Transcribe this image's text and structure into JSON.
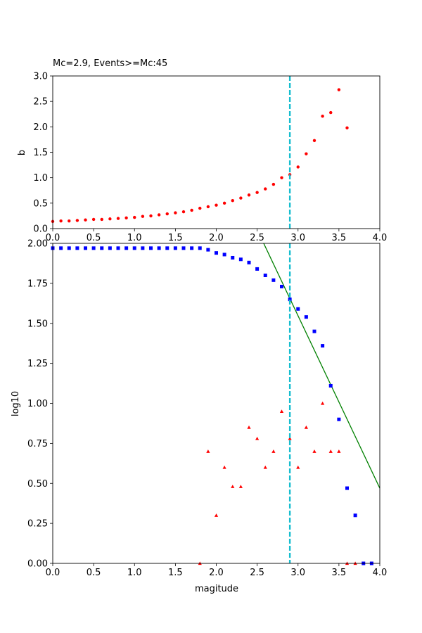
{
  "chart_data": [
    {
      "type": "scatter",
      "title": "Mc=2.9, Events>=Mc:45",
      "xlabel": "",
      "ylabel": "b",
      "xlim": [
        0,
        4
      ],
      "ylim": [
        0,
        3
      ],
      "xticks": [
        "0.0",
        "0.5",
        "1.0",
        "1.5",
        "2.0",
        "2.5",
        "3.0",
        "3.5",
        "4.0"
      ],
      "yticks": [
        "0.0",
        "0.5",
        "1.0",
        "1.5",
        "2.0",
        "2.5",
        "3.0"
      ],
      "vline": 2.9,
      "series": [
        {
          "marker": "circle",
          "color": "#ff0000",
          "x": [
            0.0,
            0.1,
            0.2,
            0.3,
            0.4,
            0.5,
            0.6,
            0.7,
            0.8,
            0.9,
            1.0,
            1.1,
            1.2,
            1.3,
            1.4,
            1.5,
            1.6,
            1.7,
            1.8,
            1.9,
            2.0,
            2.1,
            2.2,
            2.3,
            2.4,
            2.5,
            2.6,
            2.7,
            2.8,
            2.9,
            3.0,
            3.1,
            3.2,
            3.3,
            3.4,
            3.5,
            3.6
          ],
          "y": [
            0.14,
            0.15,
            0.15,
            0.16,
            0.17,
            0.18,
            0.18,
            0.19,
            0.2,
            0.21,
            0.22,
            0.24,
            0.25,
            0.27,
            0.29,
            0.31,
            0.33,
            0.36,
            0.4,
            0.43,
            0.46,
            0.5,
            0.55,
            0.6,
            0.66,
            0.71,
            0.78,
            0.87,
            1.0,
            1.06,
            1.21,
            1.47,
            1.73,
            2.21,
            2.28,
            2.73,
            1.98
          ]
        }
      ]
    },
    {
      "type": "scatter",
      "title": "",
      "xlabel": "magitude",
      "ylabel": "log10",
      "xlim": [
        0,
        4
      ],
      "ylim": [
        0,
        2
      ],
      "xticks": [
        "0.0",
        "0.5",
        "1.0",
        "1.5",
        "2.0",
        "2.5",
        "3.0",
        "3.5",
        "4.0"
      ],
      "yticks": [
        "0.00",
        "0.25",
        "0.50",
        "0.75",
        "1.00",
        "1.25",
        "1.50",
        "1.75",
        "2.00"
      ],
      "vline": 2.9,
      "fit_line": {
        "x": [
          2.58,
          4.0
        ],
        "y": [
          2.0,
          0.47
        ],
        "color": "#008000"
      },
      "series": [
        {
          "marker": "square",
          "color": "#0000ff",
          "x": [
            0.0,
            0.1,
            0.2,
            0.3,
            0.4,
            0.5,
            0.6,
            0.7,
            0.8,
            0.9,
            1.0,
            1.1,
            1.2,
            1.3,
            1.4,
            1.5,
            1.6,
            1.7,
            1.8,
            1.9,
            2.0,
            2.1,
            2.2,
            2.3,
            2.4,
            2.5,
            2.6,
            2.7,
            2.8,
            2.9,
            3.0,
            3.1,
            3.2,
            3.3,
            3.4,
            3.5,
            3.6,
            3.7,
            3.8,
            3.9
          ],
          "y": [
            1.97,
            1.97,
            1.97,
            1.97,
            1.97,
            1.97,
            1.97,
            1.97,
            1.97,
            1.97,
            1.97,
            1.97,
            1.97,
            1.97,
            1.97,
            1.97,
            1.97,
            1.97,
            1.97,
            1.96,
            1.94,
            1.93,
            1.91,
            1.9,
            1.88,
            1.84,
            1.8,
            1.77,
            1.73,
            1.65,
            1.59,
            1.54,
            1.45,
            1.36,
            1.11,
            0.9,
            0.47,
            0.3,
            0.0,
            0.0
          ]
        },
        {
          "marker": "triangle",
          "color": "#ff0000",
          "x": [
            1.8,
            1.9,
            2.0,
            2.1,
            2.2,
            2.3,
            2.4,
            2.5,
            2.6,
            2.7,
            2.8,
            2.9,
            3.0,
            3.1,
            3.2,
            3.3,
            3.4,
            3.5,
            3.6,
            3.7
          ],
          "y": [
            0.0,
            0.7,
            0.3,
            0.6,
            0.48,
            0.48,
            0.85,
            0.78,
            0.6,
            0.7,
            0.95,
            0.78,
            0.6,
            0.85,
            0.7,
            1.0,
            0.7,
            0.7,
            0.0,
            0.0
          ]
        }
      ]
    }
  ]
}
